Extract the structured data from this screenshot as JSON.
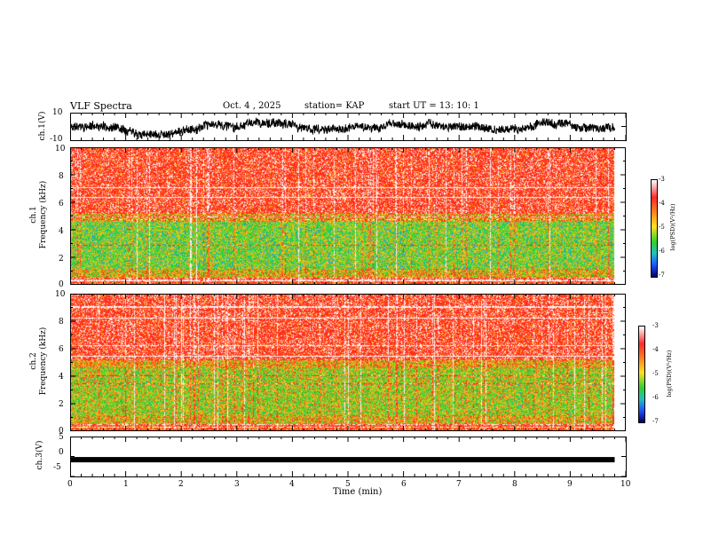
{
  "header": {
    "title": "VLF Spectra",
    "date": "Oct. 4 , 2025",
    "station": "station= KAP",
    "start_ut": "start  UT =   13: 10: 1"
  },
  "chart_data": [
    {
      "id": "ch1_waveform",
      "type": "line",
      "ylabel": "ch.1(V)",
      "ytick_labels": [
        "10",
        "-10"
      ],
      "ylim": [
        -10,
        10
      ],
      "xlim": [
        0,
        10
      ],
      "trace_end_min": 9.8,
      "description_series": "noisy waveform roughly between -5 and +5 V"
    },
    {
      "id": "ch1_spectrogram",
      "type": "heatmap",
      "ylabel": "ch.1\nFrequency  (kHz)",
      "ylabel_line1": "ch.1",
      "ylabel_line2": "Frequency  (kHz)",
      "ytick_labels": [
        "10",
        "8",
        "6",
        "4",
        "2",
        "0"
      ],
      "ylim": [
        0,
        10
      ],
      "xlim": [
        0,
        10
      ],
      "data_end_min": 9.8,
      "colorbar": {
        "label": "log(PSD)(V²/Hz)",
        "tick_labels": [
          "-3",
          "-4",
          "-5",
          "-6",
          "-7"
        ],
        "range": [
          -7,
          -3
        ]
      }
    },
    {
      "id": "ch2_spectrogram",
      "type": "heatmap",
      "ylabel_line1": "ch.2",
      "ylabel_line2": "Frequency  (kHz)",
      "ytick_labels": [
        "10",
        "8",
        "6",
        "4",
        "2",
        "0"
      ],
      "ylim": [
        0,
        10
      ],
      "xlim": [
        0,
        10
      ],
      "data_end_min": 9.8,
      "colorbar": {
        "label": "log(PSD)(V²/Hz)",
        "tick_labels": [
          "-3",
          "-4",
          "-5",
          "-6",
          "-7"
        ],
        "range": [
          -7,
          -3
        ]
      }
    },
    {
      "id": "ch3_waveform",
      "type": "line",
      "ylabel": "ch.3(V)",
      "ytick_labels": [
        "5",
        "0",
        "-5"
      ],
      "ylim": [
        -5,
        5
      ],
      "xlim": [
        0,
        10
      ],
      "trace_value_approx": -0.8,
      "xlabel": "Time  (min)",
      "xtick_labels": [
        "0",
        "1",
        "2",
        "3",
        "4",
        "5",
        "6",
        "7",
        "8",
        "9",
        "10"
      ]
    }
  ],
  "colors": {
    "ink": "#000000",
    "psd_high": "#ff1e1e",
    "psd_mid": "#ffd21e",
    "psd_low": "#1ed21e"
  }
}
